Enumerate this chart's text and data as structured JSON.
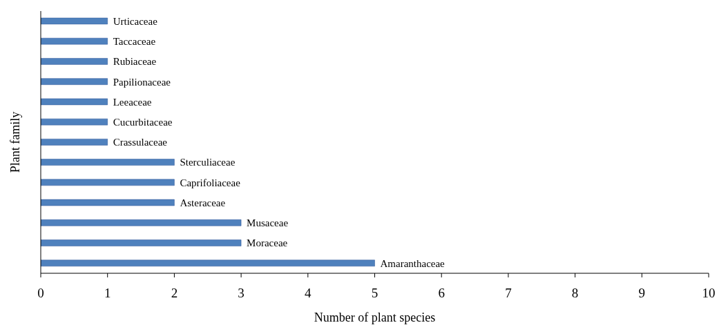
{
  "chart_data": {
    "type": "bar",
    "orientation": "horizontal",
    "xlabel": "Number of plant species",
    "ylabel": "Plant family",
    "categories": [
      "Urticaceae",
      "Taccaceae",
      "Rubiaceae",
      "Papilionaceae",
      "Leeaceae",
      "Cucurbitaceae",
      "Crassulaceae",
      "Sterculiaceae",
      "Caprifoliaceae",
      "Asteraceae",
      "Musaceae",
      "Moraceae",
      "Amaranthaceae"
    ],
    "values": [
      1,
      1,
      1,
      1,
      1,
      1,
      1,
      2,
      2,
      2,
      3,
      3,
      5
    ],
    "color": "#4f81bd",
    "xlim": [
      0,
      10
    ],
    "xticks": [
      0,
      1,
      2,
      3,
      4,
      5,
      6,
      7,
      8,
      9,
      10
    ],
    "grid": false,
    "legend": false
  }
}
